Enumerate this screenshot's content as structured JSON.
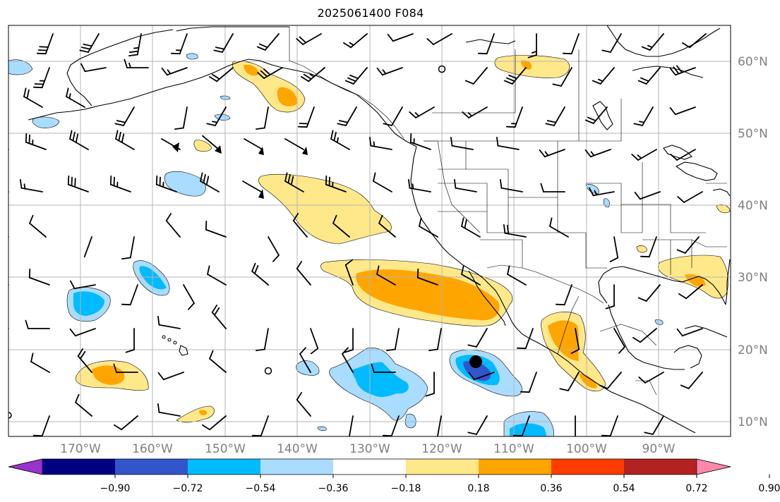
{
  "title": "2025061400 F084",
  "map": {
    "lon_labels": [
      "170°W",
      "160°W",
      "150°W",
      "140°W",
      "130°W",
      "120°W",
      "110°W",
      "100°W",
      "90°W"
    ],
    "lat_labels": [
      "60°N",
      "50°N",
      "40°N",
      "30°N",
      "20°N",
      "10°N"
    ],
    "marker": "storm-center-dot"
  },
  "colorbar": {
    "tick_labels": [
      "−0.90",
      "−0.72",
      "−0.54",
      "−0.36",
      "−0.18",
      "0.18",
      "0.36",
      "0.54",
      "0.72",
      "0.90"
    ],
    "colors": [
      "#9933cc",
      "#000080",
      "#3355cc",
      "#00bbff",
      "#aadcff",
      "#ffffff",
      "#ffe88a",
      "#ffa500",
      "#ff3c00",
      "#b22222",
      "#ff88aa"
    ]
  }
}
